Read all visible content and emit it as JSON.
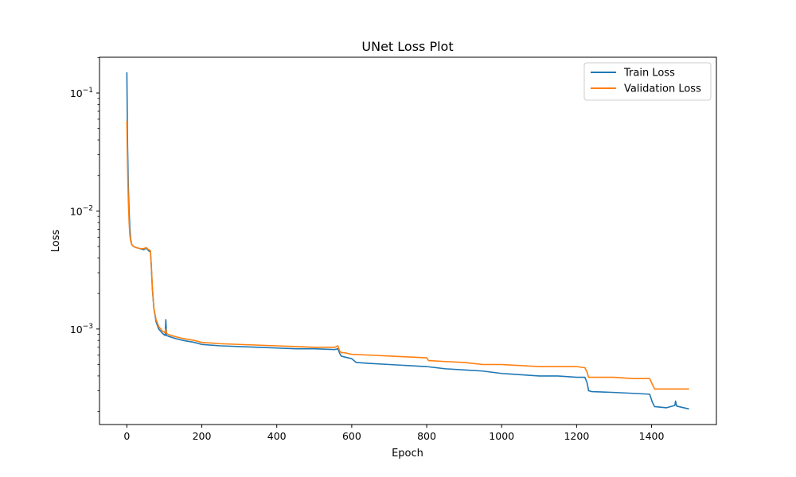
{
  "chart_data": {
    "type": "line",
    "title": "UNet Loss Plot",
    "xlabel": "Epoch",
    "ylabel": "Loss",
    "yscale": "log",
    "xlim": [
      -73,
      1573
    ],
    "ylim": [
      0.000155,
      0.201
    ],
    "x_ticks": [
      0,
      200,
      400,
      600,
      800,
      1000,
      1200,
      1400
    ],
    "x_tick_labels": [
      "0",
      "200",
      "400",
      "600",
      "800",
      "1000",
      "1200",
      "1400"
    ],
    "y_major_ticks": [
      0.001,
      0.01,
      0.1
    ],
    "y_tick_labels": [
      {
        "base": "10",
        "exp": "−3"
      },
      {
        "base": "10",
        "exp": "−2"
      },
      {
        "base": "10",
        "exp": "−1"
      }
    ],
    "legend_position": "upper-right",
    "grid": false,
    "series": [
      {
        "name": "Train Loss",
        "color": "#1f77b4",
        "points": [
          [
            0,
            0.15
          ],
          [
            1,
            0.07
          ],
          [
            2,
            0.035
          ],
          [
            4,
            0.016
          ],
          [
            6,
            0.01
          ],
          [
            8,
            0.0072
          ],
          [
            10,
            0.0058
          ],
          [
            13,
            0.0052
          ],
          [
            18,
            0.005
          ],
          [
            25,
            0.0049
          ],
          [
            35,
            0.0048
          ],
          [
            45,
            0.0047
          ],
          [
            52,
            0.00485
          ],
          [
            58,
            0.0046
          ],
          [
            63,
            0.0045
          ],
          [
            65,
            0.0035
          ],
          [
            68,
            0.0022
          ],
          [
            72,
            0.0015
          ],
          [
            78,
            0.00115
          ],
          [
            85,
            0.001
          ],
          [
            95,
            0.00092
          ],
          [
            102,
            0.00088
          ],
          [
            104,
            0.0012
          ],
          [
            106,
            0.00088
          ],
          [
            110,
            0.00087
          ],
          [
            130,
            0.00083
          ],
          [
            150,
            0.0008
          ],
          [
            180,
            0.00077
          ],
          [
            200,
            0.00074
          ],
          [
            250,
            0.00072
          ],
          [
            300,
            0.00071
          ],
          [
            350,
            0.0007
          ],
          [
            400,
            0.00069
          ],
          [
            450,
            0.00068
          ],
          [
            500,
            0.00068
          ],
          [
            555,
            0.00067
          ],
          [
            563,
            0.00068
          ],
          [
            568,
            0.00062
          ],
          [
            572,
            0.00059
          ],
          [
            580,
            0.00058
          ],
          [
            600,
            0.00056
          ],
          [
            612,
            0.00052
          ],
          [
            650,
            0.00051
          ],
          [
            700,
            0.0005
          ],
          [
            750,
            0.00049
          ],
          [
            800,
            0.00048
          ],
          [
            850,
            0.00046
          ],
          [
            900,
            0.00045
          ],
          [
            950,
            0.00044
          ],
          [
            1000,
            0.00042
          ],
          [
            1050,
            0.00041
          ],
          [
            1100,
            0.0004
          ],
          [
            1150,
            0.0004
          ],
          [
            1200,
            0.00039
          ],
          [
            1222,
            0.00039
          ],
          [
            1228,
            0.00035
          ],
          [
            1232,
            0.0003
          ],
          [
            1240,
            0.000295
          ],
          [
            1300,
            0.00029
          ],
          [
            1350,
            0.000285
          ],
          [
            1395,
            0.00028
          ],
          [
            1402,
            0.00024
          ],
          [
            1408,
            0.00022
          ],
          [
            1440,
            0.000215
          ],
          [
            1462,
            0.000225
          ],
          [
            1464,
            0.000245
          ],
          [
            1467,
            0.000222
          ],
          [
            1500,
            0.00021
          ]
        ]
      },
      {
        "name": "Validation Loss",
        "color": "#ff7f0e",
        "points": [
          [
            0,
            0.058
          ],
          [
            1,
            0.035
          ],
          [
            2,
            0.022
          ],
          [
            4,
            0.012
          ],
          [
            6,
            0.008
          ],
          [
            8,
            0.0062
          ],
          [
            10,
            0.0056
          ],
          [
            13,
            0.0052
          ],
          [
            18,
            0.005
          ],
          [
            25,
            0.0049
          ],
          [
            35,
            0.0048
          ],
          [
            45,
            0.0048
          ],
          [
            52,
            0.0049
          ],
          [
            58,
            0.0047
          ],
          [
            63,
            0.0046
          ],
          [
            65,
            0.0036
          ],
          [
            68,
            0.0023
          ],
          [
            72,
            0.0015
          ],
          [
            78,
            0.0012
          ],
          [
            85,
            0.00105
          ],
          [
            95,
            0.00096
          ],
          [
            102,
            0.00093
          ],
          [
            104,
            0.001
          ],
          [
            106,
            0.00092
          ],
          [
            110,
            0.0009
          ],
          [
            130,
            0.00086
          ],
          [
            150,
            0.00083
          ],
          [
            180,
            0.0008
          ],
          [
            200,
            0.00077
          ],
          [
            250,
            0.00075
          ],
          [
            300,
            0.00074
          ],
          [
            350,
            0.00073
          ],
          [
            400,
            0.00072
          ],
          [
            450,
            0.00071
          ],
          [
            500,
            0.0007
          ],
          [
            555,
            0.0007
          ],
          [
            563,
            0.00072
          ],
          [
            568,
            0.00065
          ],
          [
            572,
            0.00063
          ],
          [
            580,
            0.00063
          ],
          [
            600,
            0.00061
          ],
          [
            650,
            0.0006
          ],
          [
            700,
            0.00059
          ],
          [
            750,
            0.00058
          ],
          [
            800,
            0.00057
          ],
          [
            805,
            0.00054
          ],
          [
            850,
            0.00053
          ],
          [
            900,
            0.00052
          ],
          [
            950,
            0.0005
          ],
          [
            1000,
            0.0005
          ],
          [
            1050,
            0.00049
          ],
          [
            1100,
            0.00048
          ],
          [
            1150,
            0.00048
          ],
          [
            1200,
            0.00048
          ],
          [
            1222,
            0.00047
          ],
          [
            1228,
            0.00043
          ],
          [
            1232,
            0.00039
          ],
          [
            1240,
            0.00039
          ],
          [
            1300,
            0.00039
          ],
          [
            1350,
            0.00038
          ],
          [
            1395,
            0.00038
          ],
          [
            1402,
            0.00034
          ],
          [
            1408,
            0.00031
          ],
          [
            1440,
            0.00031
          ],
          [
            1470,
            0.00031
          ],
          [
            1500,
            0.00031
          ]
        ]
      }
    ]
  }
}
